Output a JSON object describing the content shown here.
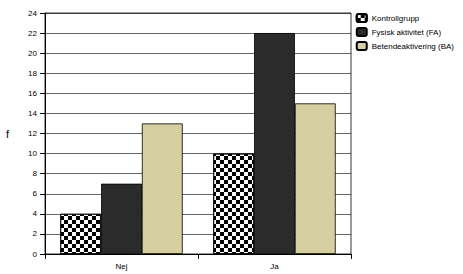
{
  "chart_data": {
    "type": "bar",
    "categories": [
      "Nej",
      "Ja"
    ],
    "series": [
      {
        "name": "Kontrollgrupp",
        "color": "#000000",
        "marker": "checkered",
        "values": [
          4,
          10
        ]
      },
      {
        "name": "Fysisk aktivitet (FA)",
        "color": "#2b2b2b",
        "values": [
          7,
          22
        ]
      },
      {
        "name": "Betendeaktivering (BA)",
        "color": "#d6cf9f",
        "values": [
          13,
          15
        ]
      }
    ],
    "y_label": "f",
    "ylim": [
      0,
      24
    ],
    "yticks": [
      0,
      2,
      4,
      6,
      8,
      10,
      12,
      14,
      16,
      18,
      20,
      22,
      24
    ],
    "grid": true,
    "legend": "upper right"
  }
}
